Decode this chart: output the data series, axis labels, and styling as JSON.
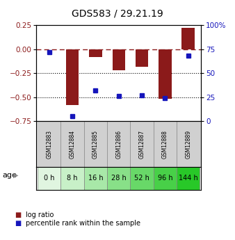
{
  "title": "GDS583 / 29.21.19",
  "samples": [
    "GSM12883",
    "GSM12884",
    "GSM12885",
    "GSM12886",
    "GSM12887",
    "GSM12888",
    "GSM12889"
  ],
  "ages": [
    "0 h",
    "8 h",
    "16 h",
    "28 h",
    "52 h",
    "96 h",
    "144 h"
  ],
  "log_ratio": [
    0.0,
    -0.58,
    -0.08,
    -0.22,
    -0.18,
    -0.52,
    0.22
  ],
  "percentile_rank": [
    72,
    5,
    32,
    26,
    27,
    24,
    68
  ],
  "log_ratio_color": "#8B1A1A",
  "percentile_color": "#1515BB",
  "ylim_left": [
    -0.75,
    0.25
  ],
  "ylim_right": [
    0,
    100
  ],
  "yticks_left": [
    0.25,
    0.0,
    -0.25,
    -0.5,
    -0.75
  ],
  "yticks_right": [
    100,
    75,
    50,
    25,
    0
  ],
  "ytick_labels_right": [
    "100%",
    "75",
    "50",
    "25",
    "0"
  ],
  "dotted_lines": [
    -0.25,
    -0.5
  ],
  "gsm_cell_color": "#c8c8c8",
  "age_colors": [
    "#e0f5e0",
    "#c8f0c8",
    "#a8e8a8",
    "#88e088",
    "#68d868",
    "#48d048",
    "#28c828"
  ],
  "background_color": "#ffffff",
  "legend_items": [
    "log ratio",
    "percentile rank within the sample"
  ]
}
